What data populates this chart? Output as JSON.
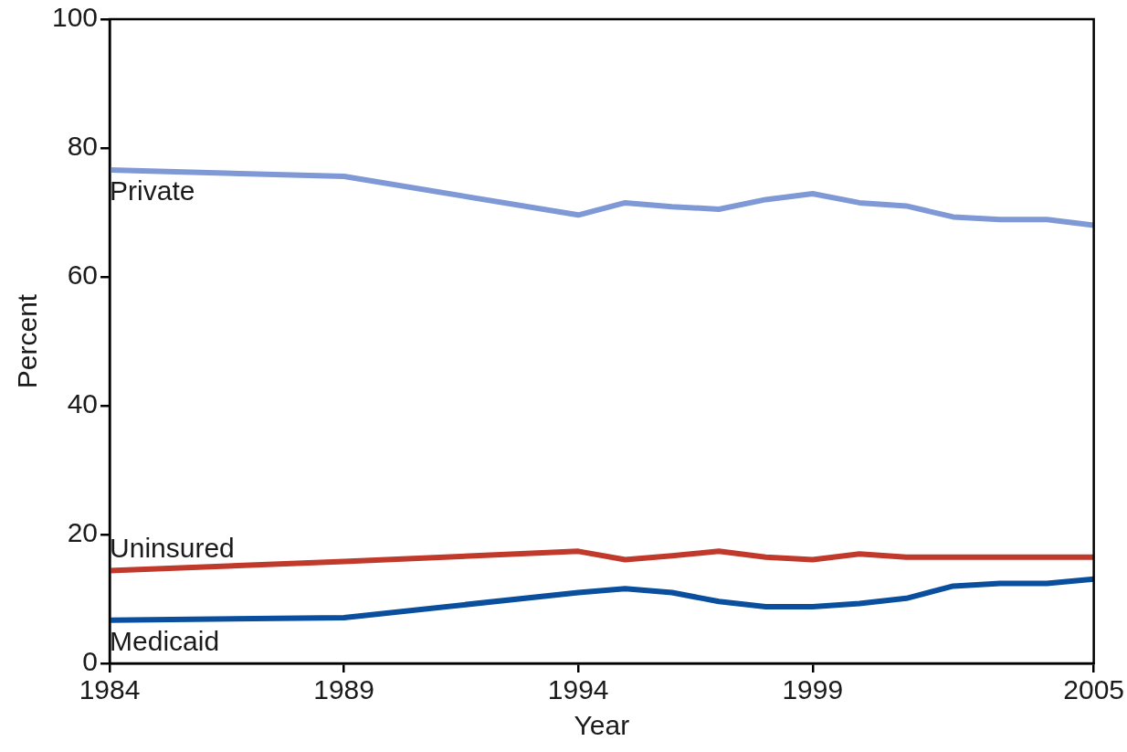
{
  "chart_data": {
    "type": "line",
    "xlabel": "Year",
    "ylabel": "Percent",
    "x": [
      1984,
      1989,
      1994,
      1995,
      1996,
      1997,
      1998,
      1999,
      2000,
      2001,
      2002,
      2003,
      2004,
      2005
    ],
    "xlim": [
      1984,
      2005
    ],
    "xticks": [
      1984,
      1989,
      1994,
      1999,
      2005
    ],
    "ylim": [
      0,
      100
    ],
    "yticks": [
      0,
      20,
      40,
      60,
      80,
      100
    ],
    "grid": false,
    "legend": false,
    "marker": "none",
    "line_style": "solid",
    "series": [
      {
        "name": "Private",
        "color": "#7f98d6",
        "values": [
          76.6,
          75.6,
          69.6,
          71.5,
          70.9,
          70.5,
          72.0,
          72.9,
          71.5,
          71.0,
          69.3,
          68.9,
          68.9,
          68.0
        ]
      },
      {
        "name": "Uninsured",
        "color": "#c0392b",
        "values": [
          14.4,
          15.8,
          17.4,
          16.1,
          16.7,
          17.4,
          16.5,
          16.1,
          17.0,
          16.5,
          16.5,
          16.5,
          16.5,
          16.5
        ]
      },
      {
        "name": "Medicaid",
        "color": "#0a4f9e",
        "values": [
          6.7,
          7.1,
          11.0,
          11.6,
          11.0,
          9.6,
          8.8,
          8.8,
          9.3,
          10.1,
          12.0,
          12.4,
          12.4,
          13.1
        ]
      }
    ]
  }
}
